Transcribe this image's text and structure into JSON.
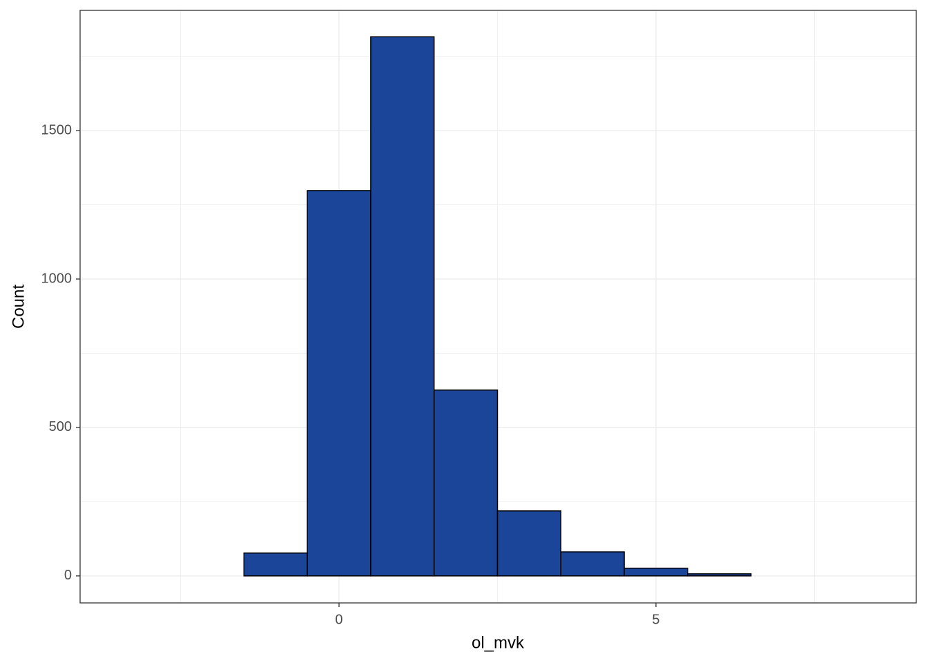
{
  "chart_data": {
    "type": "histogram",
    "x_label": "ol_mvk",
    "y_label": "Count",
    "bins": [
      -3.5,
      -2.5,
      -1.5,
      -0.5,
      0.5,
      1.5,
      2.5,
      3.5,
      4.5,
      5.5,
      6.5,
      7.5,
      8.5
    ],
    "values": [
      0,
      0,
      77,
      1298,
      1816,
      626,
      219,
      81,
      26,
      7,
      0,
      0
    ],
    "color": "#1a4599",
    "edge_color": "#000000",
    "xlim": [
      -4.085,
      9.107
    ],
    "ylim": [
      -91,
      1905
    ],
    "xticks": [
      0,
      5
    ],
    "yticks": [
      0,
      500,
      1000,
      1500
    ],
    "grid": true
  }
}
